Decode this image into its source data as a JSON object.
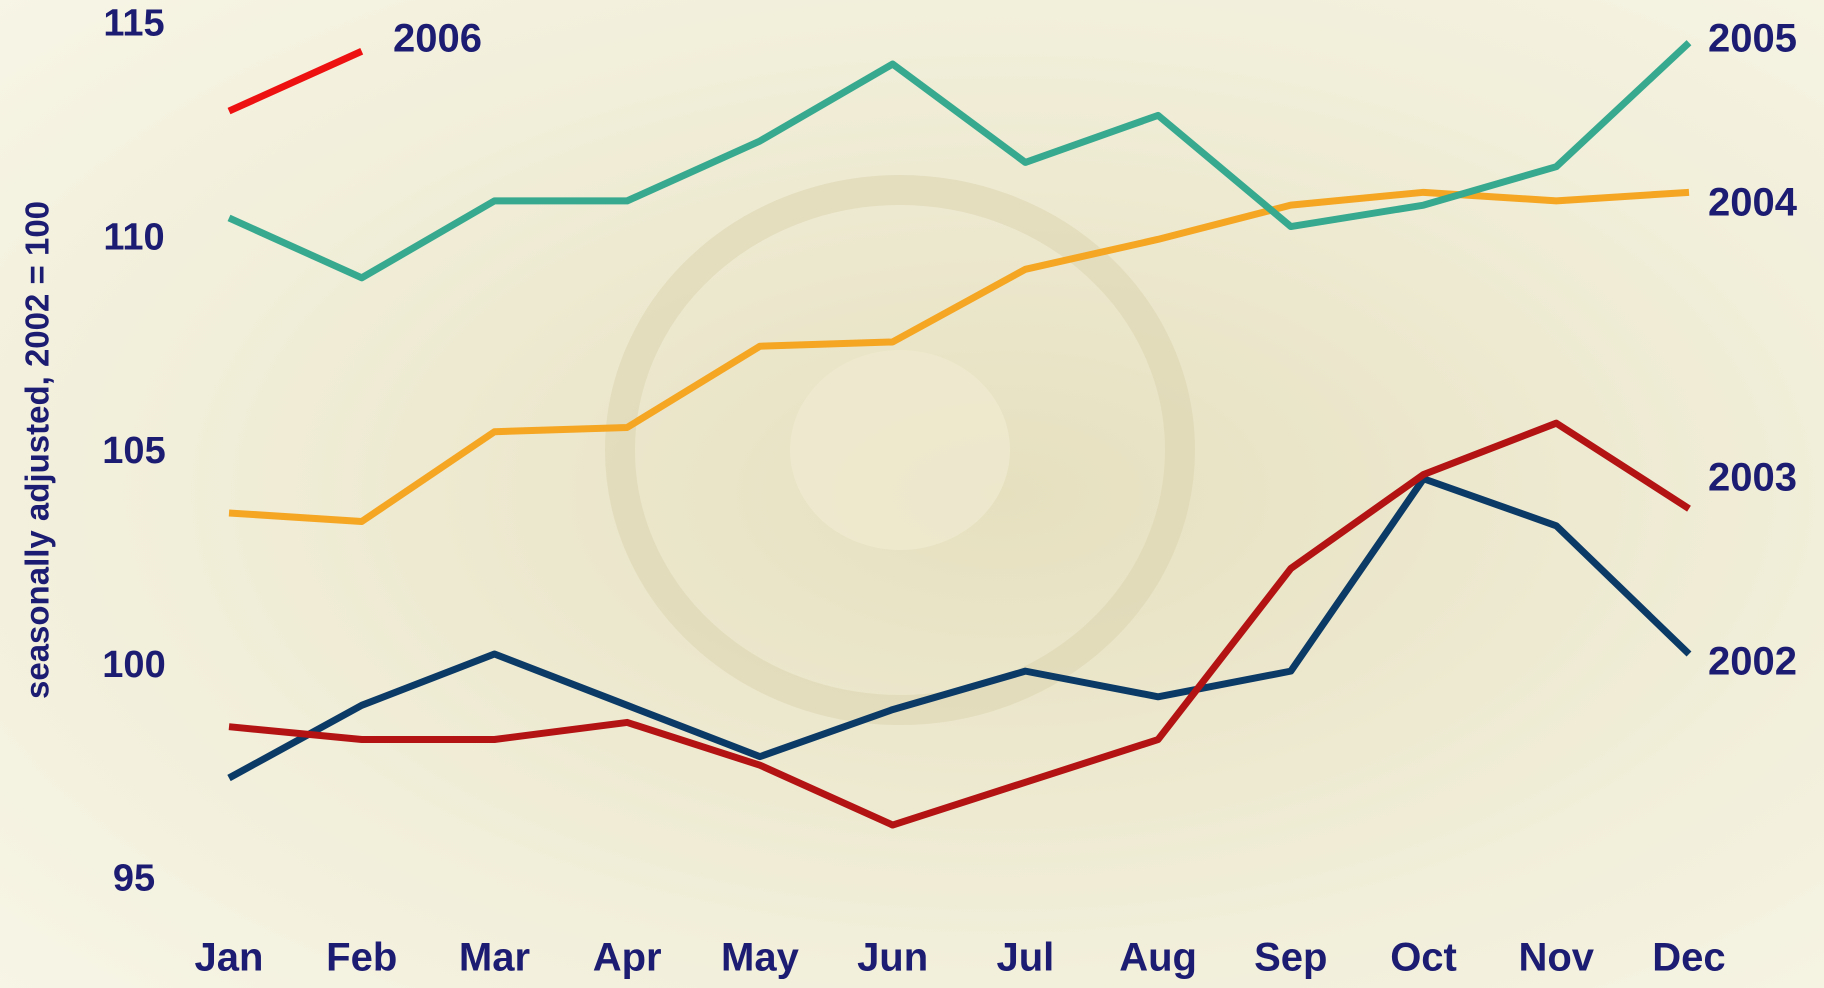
{
  "chart_data": {
    "type": "line",
    "y_label": "seasonally adjusted, 2002 = 100",
    "categories": [
      "Jan",
      "Feb",
      "Mar",
      "Apr",
      "May",
      "Jun",
      "Jul",
      "Aug",
      "Sep",
      "Oct",
      "Nov",
      "Dec"
    ],
    "series": [
      {
        "name": "2002",
        "color": "#0b3a66",
        "values": [
          97.4,
          99.1,
          100.3,
          99.1,
          97.9,
          99.0,
          99.9,
          99.3,
          99.9,
          104.4,
          103.3,
          100.3
        ]
      },
      {
        "name": "2003",
        "color": "#b31313",
        "values": [
          98.6,
          98.3,
          98.3,
          98.7,
          97.7,
          96.3,
          97.3,
          98.3,
          102.3,
          104.5,
          105.7,
          103.7
        ]
      },
      {
        "name": "2004",
        "color": "#f5a623",
        "values": [
          103.6,
          103.4,
          105.5,
          105.6,
          107.5,
          107.6,
          109.3,
          110.0,
          110.8,
          111.1,
          110.9,
          111.1
        ]
      },
      {
        "name": "2005",
        "color": "#36a98e",
        "values": [
          110.5,
          109.1,
          110.9,
          110.9,
          112.3,
          114.1,
          111.8,
          112.9,
          110.3,
          110.8,
          111.7,
          114.6
        ]
      },
      {
        "name": "2006",
        "color": "#ee1111",
        "values": [
          113.0,
          114.4,
          null,
          null,
          null,
          null,
          null,
          null,
          null,
          null,
          null,
          null
        ]
      }
    ],
    "ylim": [
      95,
      115
    ],
    "yticks": [
      95,
      100,
      105,
      110,
      115
    ],
    "grid": false
  }
}
